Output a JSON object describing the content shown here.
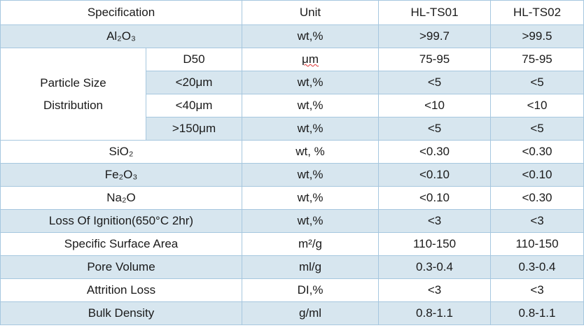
{
  "table": {
    "header": [
      "Specification",
      "Unit",
      "HL-TS01",
      "HL-TS02"
    ],
    "rows": [
      {
        "spec": "Al₂O₃",
        "unit": "wt,%",
        "values": [
          ">99.7",
          ">99.5"
        ]
      },
      {
        "group": "Particle Size Distribution",
        "sub": "D50",
        "unit": "μm",
        "values": [
          "75-95",
          "75-95"
        ]
      },
      {
        "sub": "<20μm",
        "unit": "wt,%",
        "values": [
          "<5",
          "<5"
        ]
      },
      {
        "sub": "<40μm",
        "unit": "wt,%",
        "values": [
          "<10",
          "<10"
        ]
      },
      {
        "sub": ">150μm",
        "unit": "wt,%",
        "values": [
          "<5",
          "<5"
        ]
      },
      {
        "spec": "SiO₂",
        "unit": "wt, %",
        "values": [
          "<0.30",
          "<0.30"
        ]
      },
      {
        "spec": "Fe₂O₃",
        "unit": "wt,%",
        "values": [
          "<0.10",
          "<0.10"
        ]
      },
      {
        "spec": "Na₂O",
        "unit": "wt,%",
        "values": [
          "<0.10",
          "<0.30"
        ]
      },
      {
        "spec": "Loss Of Ignition(650°C 2hr)",
        "unit": "wt,%",
        "values": [
          "<3",
          "<3"
        ]
      },
      {
        "spec": "Specific Surface Area",
        "unit": "m²/g",
        "values": [
          "110-150",
          "110-150"
        ]
      },
      {
        "spec": "Pore Volume",
        "unit": "ml/g",
        "values": [
          "0.3-0.4",
          "0.3-0.4"
        ]
      },
      {
        "spec": "Attrition Loss",
        "unit": "DI,%",
        "values": [
          "<3",
          "<3"
        ]
      },
      {
        "spec": "Bulk Density",
        "unit": "g/ml",
        "values": [
          "0.8-1.1",
          "0.8-1.1"
        ]
      }
    ]
  }
}
